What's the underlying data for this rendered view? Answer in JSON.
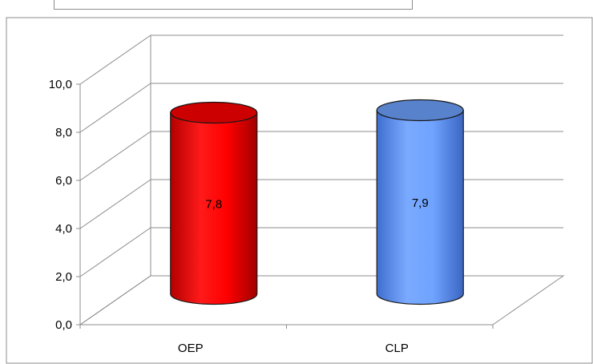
{
  "chart_data": {
    "type": "bar",
    "style": "3d-cylinder",
    "categories": [
      "OEP",
      "CLP"
    ],
    "values": [
      7.8,
      7.9
    ],
    "data_labels": [
      "7,8",
      "7,9"
    ],
    "bar_colors": [
      "#ff0000",
      "#6fa3ff"
    ],
    "ylim": [
      0,
      10
    ],
    "yticks": [
      0,
      2,
      4,
      6,
      8,
      10
    ],
    "ytick_labels": [
      "0,0",
      "2,0",
      "4,0",
      "6,0",
      "8,0",
      "10,0"
    ],
    "grid": true,
    "legend": "none"
  }
}
